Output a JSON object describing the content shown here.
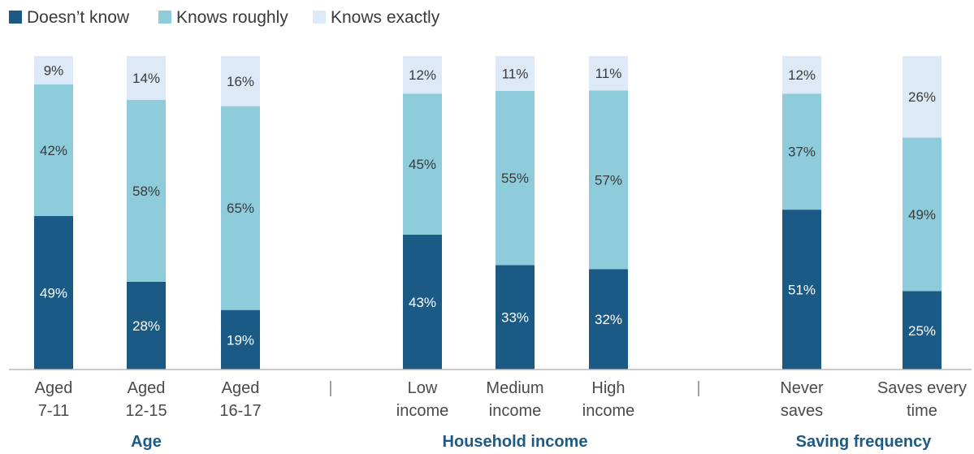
{
  "chart_data": {
    "type": "bar",
    "stacked": true,
    "value_unit": "%",
    "legend_position": "top-left",
    "grid": false,
    "ylim": [
      0,
      100
    ],
    "separator_glyph": "|",
    "legend": [
      {
        "name": "Doesn’t know",
        "color": "#1c5a86"
      },
      {
        "name": "Knows roughly",
        "color": "#8ecbdb"
      },
      {
        "name": "Knows exactly",
        "color": "#dde9f6"
      }
    ],
    "groups": [
      {
        "name": "Age",
        "categories": [
          {
            "label_lines": [
              "Aged",
              "7-11"
            ],
            "values": [
              49,
              42,
              9
            ]
          },
          {
            "label_lines": [
              "Aged",
              "12-15"
            ],
            "values": [
              28,
              58,
              14
            ]
          },
          {
            "label_lines": [
              "Aged",
              "16-17"
            ],
            "values": [
              19,
              65,
              16
            ]
          }
        ]
      },
      {
        "name": "Household income",
        "categories": [
          {
            "label_lines": [
              "Low",
              "income"
            ],
            "values": [
              43,
              45,
              12
            ]
          },
          {
            "label_lines": [
              "Medium",
              "income"
            ],
            "values": [
              33,
              55,
              11
            ]
          },
          {
            "label_lines": [
              "High",
              "income"
            ],
            "values": [
              32,
              57,
              11
            ]
          }
        ]
      },
      {
        "name": "Saving frequency",
        "categories": [
          {
            "label_lines": [
              "Never",
              "saves"
            ],
            "values": [
              51,
              37,
              12
            ]
          },
          {
            "label_lines": [
              "Saves every",
              "time"
            ],
            "values": [
              25,
              49,
              26
            ]
          }
        ]
      }
    ]
  }
}
